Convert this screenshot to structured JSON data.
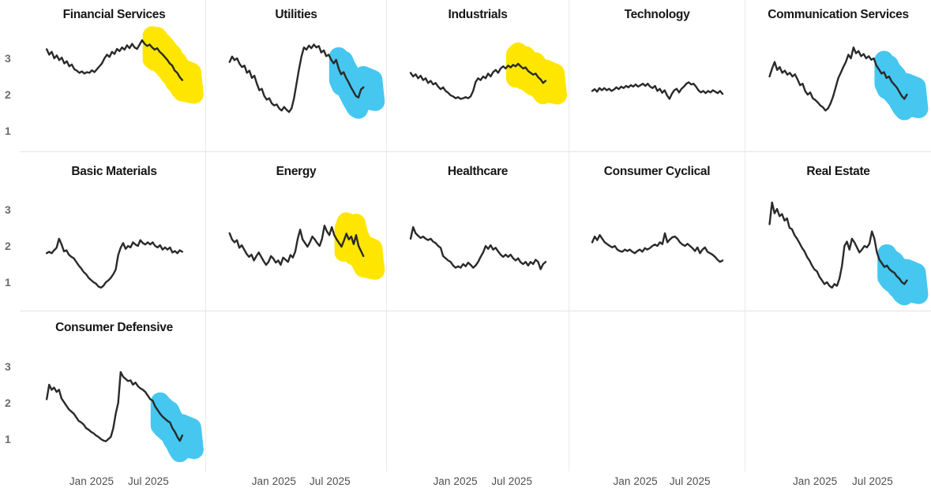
{
  "chart_data": {
    "type": "line",
    "title": "",
    "layout": "small-multiples",
    "grid": {
      "rows": 3,
      "cols": 5
    },
    "line_color": "#2a2a2a",
    "highlight_colors": {
      "yellow": "#FFE600",
      "cyan": "#45C7F0"
    },
    "yaxis": {
      "ticks": [
        {
          "label": "3",
          "value": 3
        },
        {
          "label": "2",
          "value": 2
        },
        {
          "label": "1",
          "value": 1
        }
      ],
      "ylim": [
        0.5,
        3.75
      ]
    },
    "xaxis": {
      "ticks": [
        "Jan 2025",
        "Jul 2025"
      ],
      "range_note": "weekly points, ~Sep 2024 to ~Oct 2025"
    },
    "facets": [
      {
        "name": "Financial Services",
        "row": 0,
        "col": 0,
        "highlight": "yellow",
        "highlight_points": 13,
        "values": [
          3.25,
          3.1,
          3.18,
          3.0,
          3.08,
          2.95,
          3.02,
          2.86,
          2.92,
          2.78,
          2.83,
          2.7,
          2.66,
          2.6,
          2.64,
          2.58,
          2.62,
          2.6,
          2.67,
          2.62,
          2.7,
          2.78,
          2.86,
          3.0,
          3.1,
          3.04,
          3.18,
          3.12,
          3.26,
          3.2,
          3.3,
          3.24,
          3.36,
          3.28,
          3.4,
          3.3,
          3.26,
          3.38,
          3.5,
          3.4,
          3.34,
          3.38,
          3.3,
          3.24,
          3.28,
          3.18,
          3.12,
          3.04,
          2.96,
          2.86,
          2.8,
          2.66,
          2.6,
          2.48,
          2.4
        ]
      },
      {
        "name": "Utilities",
        "row": 0,
        "col": 1,
        "highlight": "cyan",
        "highlight_points": 11,
        "values": [
          2.9,
          3.05,
          2.95,
          3.0,
          2.85,
          2.76,
          2.8,
          2.6,
          2.66,
          2.46,
          2.52,
          2.3,
          2.12,
          2.16,
          1.96,
          1.86,
          1.9,
          1.76,
          1.7,
          1.73,
          1.62,
          1.56,
          1.66,
          1.58,
          1.52,
          1.62,
          1.9,
          2.3,
          2.7,
          3.05,
          3.3,
          3.24,
          3.35,
          3.28,
          3.38,
          3.3,
          3.34,
          3.16,
          3.22,
          3.06,
          3.1,
          2.96,
          2.86,
          2.96,
          2.72,
          2.56,
          2.62,
          2.46,
          2.34,
          2.2,
          2.08,
          1.96,
          1.92,
          2.14,
          2.2
        ]
      },
      {
        "name": "Industrials",
        "row": 0,
        "col": 2,
        "highlight": "yellow",
        "highlight_points": 13,
        "values": [
          2.6,
          2.5,
          2.56,
          2.45,
          2.52,
          2.4,
          2.45,
          2.32,
          2.38,
          2.28,
          2.32,
          2.22,
          2.15,
          2.2,
          2.1,
          2.05,
          1.98,
          1.95,
          1.9,
          1.93,
          1.88,
          1.9,
          1.93,
          1.9,
          1.95,
          2.1,
          2.35,
          2.45,
          2.4,
          2.5,
          2.45,
          2.58,
          2.5,
          2.62,
          2.68,
          2.6,
          2.72,
          2.78,
          2.72,
          2.8,
          2.75,
          2.82,
          2.78,
          2.85,
          2.78,
          2.72,
          2.75,
          2.65,
          2.6,
          2.55,
          2.58,
          2.48,
          2.42,
          2.32,
          2.38
        ]
      },
      {
        "name": "Technology",
        "row": 0,
        "col": 3,
        "highlight": null,
        "highlight_points": 0,
        "values": [
          2.1,
          2.15,
          2.08,
          2.18,
          2.12,
          2.18,
          2.12,
          2.16,
          2.1,
          2.14,
          2.2,
          2.15,
          2.22,
          2.18,
          2.24,
          2.2,
          2.26,
          2.22,
          2.28,
          2.22,
          2.26,
          2.3,
          2.24,
          2.3,
          2.22,
          2.18,
          2.24,
          2.1,
          2.16,
          2.05,
          2.12,
          1.98,
          1.88,
          2.02,
          2.12,
          2.16,
          2.06,
          2.16,
          2.22,
          2.3,
          2.34,
          2.28,
          2.3,
          2.22,
          2.12,
          2.06,
          2.1,
          2.04,
          2.1,
          2.06,
          2.12,
          2.08,
          2.04,
          2.1,
          2.02
        ]
      },
      {
        "name": "Communication Services",
        "row": 0,
        "col": 4,
        "highlight": "cyan",
        "highlight_points": 10,
        "values": [
          2.5,
          2.72,
          2.9,
          2.68,
          2.76,
          2.6,
          2.66,
          2.55,
          2.6,
          2.5,
          2.56,
          2.42,
          2.26,
          2.3,
          2.1,
          2.0,
          2.06,
          1.9,
          1.85,
          1.78,
          1.7,
          1.65,
          1.56,
          1.62,
          1.76,
          1.95,
          2.2,
          2.45,
          2.6,
          2.76,
          2.9,
          3.1,
          3.0,
          3.3,
          3.14,
          3.2,
          3.06,
          3.12,
          3.0,
          3.06,
          2.96,
          3.0,
          2.8,
          2.7,
          2.58,
          2.62,
          2.46,
          2.5,
          2.36,
          2.28,
          2.2,
          2.08,
          1.96,
          1.88,
          2.0
        ]
      },
      {
        "name": "Basic Materials",
        "row": 1,
        "col": 0,
        "highlight": null,
        "highlight_points": 0,
        "values": [
          1.8,
          1.84,
          1.8,
          1.88,
          1.95,
          2.2,
          2.05,
          1.85,
          1.88,
          1.76,
          1.7,
          1.66,
          1.56,
          1.46,
          1.38,
          1.28,
          1.22,
          1.12,
          1.06,
          1.0,
          0.96,
          0.88,
          0.85,
          0.9,
          1.0,
          1.05,
          1.12,
          1.22,
          1.35,
          1.75,
          1.95,
          2.08,
          1.92,
          2.0,
          1.96,
          2.1,
          2.04,
          2.0,
          2.16,
          2.08,
          2.04,
          2.1,
          2.04,
          2.1,
          2.0,
          1.96,
          2.02,
          1.9,
          1.96,
          1.9,
          1.96,
          1.82,
          1.86,
          1.8,
          1.88,
          1.84
        ]
      },
      {
        "name": "Energy",
        "row": 1,
        "col": 1,
        "highlight": "yellow",
        "highlight_points": 9,
        "values": [
          2.35,
          2.18,
          2.1,
          2.16,
          1.95,
          2.02,
          1.9,
          1.78,
          1.7,
          1.76,
          1.6,
          1.72,
          1.82,
          1.7,
          1.58,
          1.48,
          1.56,
          1.72,
          1.65,
          1.54,
          1.6,
          1.48,
          1.68,
          1.62,
          1.56,
          1.75,
          1.68,
          1.85,
          2.2,
          2.45,
          2.18,
          2.08,
          1.98,
          2.1,
          2.26,
          2.18,
          2.08,
          2.0,
          2.2,
          2.56,
          2.4,
          2.3,
          2.52,
          2.3,
          2.18,
          2.08,
          1.98,
          2.15,
          2.34,
          2.18,
          2.26,
          2.05,
          2.3,
          2.0,
          1.86,
          1.72
        ]
      },
      {
        "name": "Healthcare",
        "row": 1,
        "col": 2,
        "highlight": null,
        "highlight_points": 0,
        "values": [
          2.2,
          2.52,
          2.35,
          2.28,
          2.22,
          2.26,
          2.2,
          2.16,
          2.2,
          2.12,
          2.08,
          2.0,
          1.95,
          1.72,
          1.66,
          1.6,
          1.56,
          1.46,
          1.4,
          1.44,
          1.4,
          1.5,
          1.44,
          1.54,
          1.48,
          1.4,
          1.46,
          1.56,
          1.7,
          1.82,
          2.0,
          1.92,
          2.02,
          1.9,
          1.95,
          1.85,
          1.76,
          1.7,
          1.76,
          1.7,
          1.76,
          1.66,
          1.6,
          1.66,
          1.55,
          1.5,
          1.56,
          1.46,
          1.56,
          1.5,
          1.62,
          1.56,
          1.36,
          1.5,
          1.56
        ]
      },
      {
        "name": "Consumer Cyclical",
        "row": 1,
        "col": 3,
        "highlight": null,
        "highlight_points": 0,
        "values": [
          2.1,
          2.26,
          2.16,
          2.3,
          2.2,
          2.1,
          2.05,
          2.0,
          1.96,
          2.0,
          1.9,
          1.86,
          1.84,
          1.9,
          1.86,
          1.9,
          1.84,
          1.8,
          1.86,
          1.9,
          1.84,
          1.94,
          1.9,
          1.94,
          2.0,
          2.04,
          2.0,
          2.1,
          2.05,
          2.35,
          2.1,
          2.18,
          2.24,
          2.26,
          2.2,
          2.1,
          2.04,
          2.0,
          2.06,
          2.0,
          1.94,
          1.86,
          1.96,
          1.8,
          1.9,
          1.96,
          1.84,
          1.8,
          1.76,
          1.7,
          1.62,
          1.56,
          1.6
        ]
      },
      {
        "name": "Real Estate",
        "row": 1,
        "col": 4,
        "highlight": "cyan",
        "highlight_points": 9,
        "values": [
          2.6,
          3.2,
          2.9,
          3.02,
          2.82,
          2.88,
          2.7,
          2.76,
          2.5,
          2.46,
          2.3,
          2.2,
          2.08,
          1.95,
          1.85,
          1.7,
          1.6,
          1.46,
          1.35,
          1.3,
          1.15,
          1.05,
          0.95,
          1.0,
          0.9,
          0.85,
          0.95,
          0.9,
          1.1,
          1.45,
          2.0,
          2.12,
          1.9,
          2.2,
          2.1,
          1.96,
          1.82,
          1.9,
          2.0,
          1.96,
          2.06,
          2.4,
          2.2,
          1.82,
          1.62,
          1.52,
          1.42,
          1.46,
          1.36,
          1.3,
          1.26,
          1.16,
          1.1,
          1.0,
          0.95,
          1.05
        ]
      },
      {
        "name": "Consumer Defensive",
        "row": 2,
        "col": 0,
        "highlight": "cyan",
        "highlight_points": 10,
        "values": [
          2.1,
          2.5,
          2.36,
          2.42,
          2.3,
          2.36,
          2.12,
          2.02,
          1.92,
          1.82,
          1.76,
          1.7,
          1.6,
          1.5,
          1.46,
          1.4,
          1.3,
          1.26,
          1.2,
          1.16,
          1.1,
          1.06,
          1.0,
          0.96,
          0.94,
          1.0,
          1.06,
          1.3,
          1.7,
          2.0,
          2.85,
          2.72,
          2.66,
          2.6,
          2.62,
          2.5,
          2.56,
          2.46,
          2.4,
          2.36,
          2.3,
          2.2,
          2.1,
          2.06,
          1.9,
          1.8,
          1.7,
          1.62,
          1.56,
          1.5,
          1.46,
          1.3,
          1.2,
          1.06,
          0.95,
          1.1
        ]
      }
    ]
  }
}
